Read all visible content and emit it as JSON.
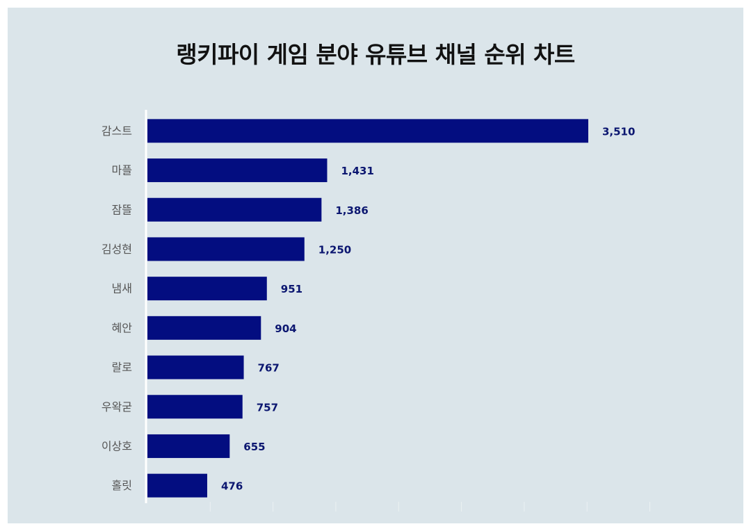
{
  "chart_data": {
    "type": "bar",
    "orientation": "horizontal",
    "title": "랭키파이 게임 분야 유튜브 채널 순위 차트",
    "xlabel": "",
    "ylabel": "",
    "categories": [
      "감스트",
      "마플",
      "잠뜰",
      "김성현",
      "냄새",
      "혜안",
      "랄로",
      "우왁굳",
      "이상호",
      "홀릿"
    ],
    "values": [
      3510,
      1431,
      1386,
      1250,
      951,
      904,
      767,
      757,
      655,
      476
    ],
    "xlim": [
      0,
      4000
    ],
    "x_ticks": [
      500,
      1000,
      1500,
      2000,
      2500,
      3000,
      3500,
      4000
    ],
    "grid": false,
    "legend": "none",
    "data_labels": "outside-end"
  },
  "colors": {
    "background": "#dbe5ea",
    "bar": "#030d80",
    "value_label": "#0b1670",
    "axis_line": "#ffffff"
  }
}
